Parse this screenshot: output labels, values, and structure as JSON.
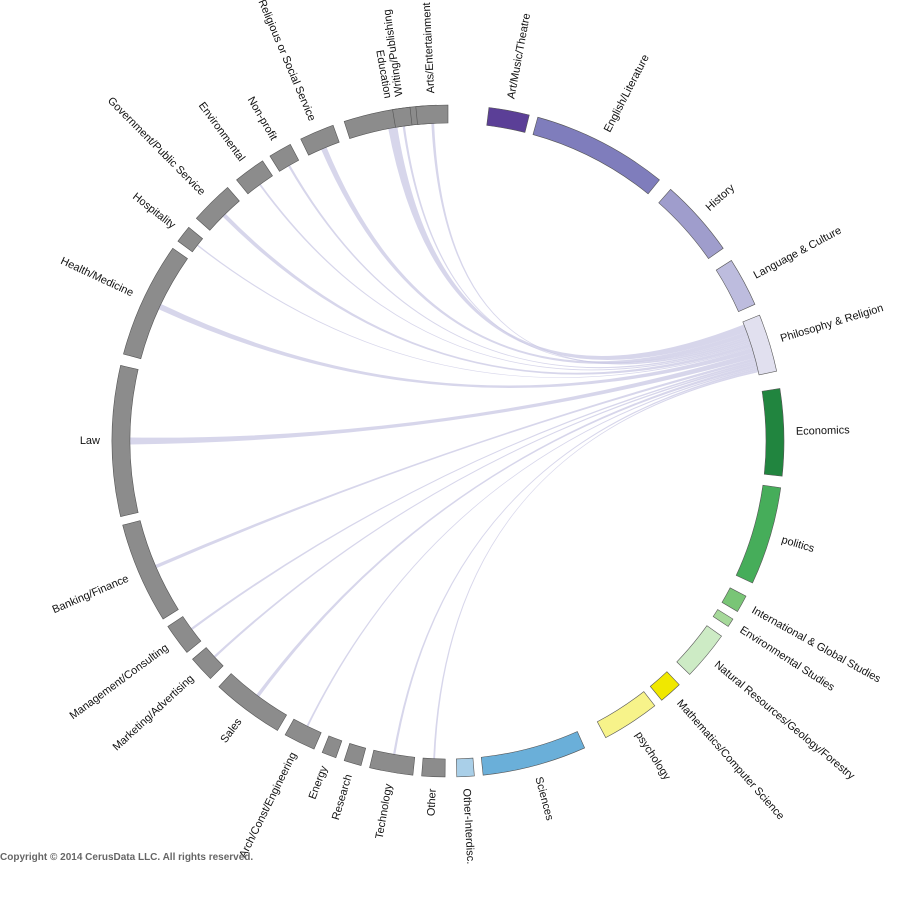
{
  "figure": {
    "type": "chord",
    "source_group": "Philosophy & Religion",
    "link_color": "#c9c8e4",
    "groups": [
      {
        "name": "Art/Music/Theatre",
        "color": "#5b3f97"
      },
      {
        "name": "English/Literature",
        "color": "#7f7dbc"
      },
      {
        "name": "History",
        "color": "#9f9dcc"
      },
      {
        "name": "Language & Culture",
        "color": "#bdbcde"
      },
      {
        "name": "Philosophy & Religion",
        "color": "#e1e0ef"
      },
      {
        "name": "Economics",
        "color": "#21853f"
      },
      {
        "name": "politics",
        "color": "#46ad5a"
      },
      {
        "name": "International & Global Studies",
        "color": "#79c576"
      },
      {
        "name": "Environmental Studies",
        "color": "#a6d99a"
      },
      {
        "name": "Natural Resources/Geology/Forestry",
        "color": "#cdebc5"
      },
      {
        "name": "Mathematics/Computer Science",
        "color": "#f0e800"
      },
      {
        "name": "psychology",
        "color": "#f7f38a"
      },
      {
        "name": "Sciences",
        "color": "#6aafd9"
      },
      {
        "name": "Other-Interdisc.",
        "color": "#a9cfe8"
      },
      {
        "name": "Other",
        "color": "#8c8c8c"
      },
      {
        "name": "Technology",
        "color": "#8c8c8c"
      },
      {
        "name": "Research",
        "color": "#8c8c8c"
      },
      {
        "name": "Energy",
        "color": "#8c8c8c"
      },
      {
        "name": "Arch/Const/Engineering",
        "color": "#8c8c8c"
      },
      {
        "name": "Sales",
        "color": "#8c8c8c"
      },
      {
        "name": "Marketing/Advertising",
        "color": "#8c8c8c"
      },
      {
        "name": "Management/Consulting",
        "color": "#8c8c8c"
      },
      {
        "name": "Banking/Finance",
        "color": "#8c8c8c"
      },
      {
        "name": "Law",
        "color": "#8c8c8c"
      },
      {
        "name": "Health/Medicine",
        "color": "#8c8c8c"
      },
      {
        "name": "Hospitality",
        "color": "#8c8c8c"
      },
      {
        "name": "Government/Public Service",
        "color": "#8c8c8c"
      },
      {
        "name": "Environmental",
        "color": "#8c8c8c"
      },
      {
        "name": "Non-profit",
        "color": "#8c8c8c"
      },
      {
        "name": "Religious or Social Service",
        "color": "#8c8c8c"
      },
      {
        "name": "Education",
        "color": "#8c8c8c"
      },
      {
        "name": "Writing/Publishing",
        "color": "#8c8c8c"
      },
      {
        "name": "Arts/Entertainment",
        "color": "#8c8c8c"
      }
    ],
    "links": [
      {
        "target": "Education",
        "weight": 4
      },
      {
        "target": "Religious or Social Service",
        "weight": 2.5
      },
      {
        "target": "Writing/Publishing",
        "weight": 1
      },
      {
        "target": "Arts/Entertainment",
        "weight": 1.2
      },
      {
        "target": "Non-profit",
        "weight": 1
      },
      {
        "target": "Environmental",
        "weight": 0.8
      },
      {
        "target": "Government/Public Service",
        "weight": 1.8
      },
      {
        "target": "Hospitality",
        "weight": 0.6
      },
      {
        "target": "Health/Medicine",
        "weight": 2.5
      },
      {
        "target": "Law",
        "weight": 3
      },
      {
        "target": "Banking/Finance",
        "weight": 1.5
      },
      {
        "target": "Management/Consulting",
        "weight": 1
      },
      {
        "target": "Marketing/Advertising",
        "weight": 1
      },
      {
        "target": "Sales",
        "weight": 1.5
      },
      {
        "target": "Arch/Const/Engineering",
        "weight": 0.8
      },
      {
        "target": "Technology",
        "weight": 1
      },
      {
        "target": "Other",
        "weight": 0.8
      }
    ]
  },
  "copyright": "Copyright © 2014 CerusData LLC.  All rights reserved."
}
